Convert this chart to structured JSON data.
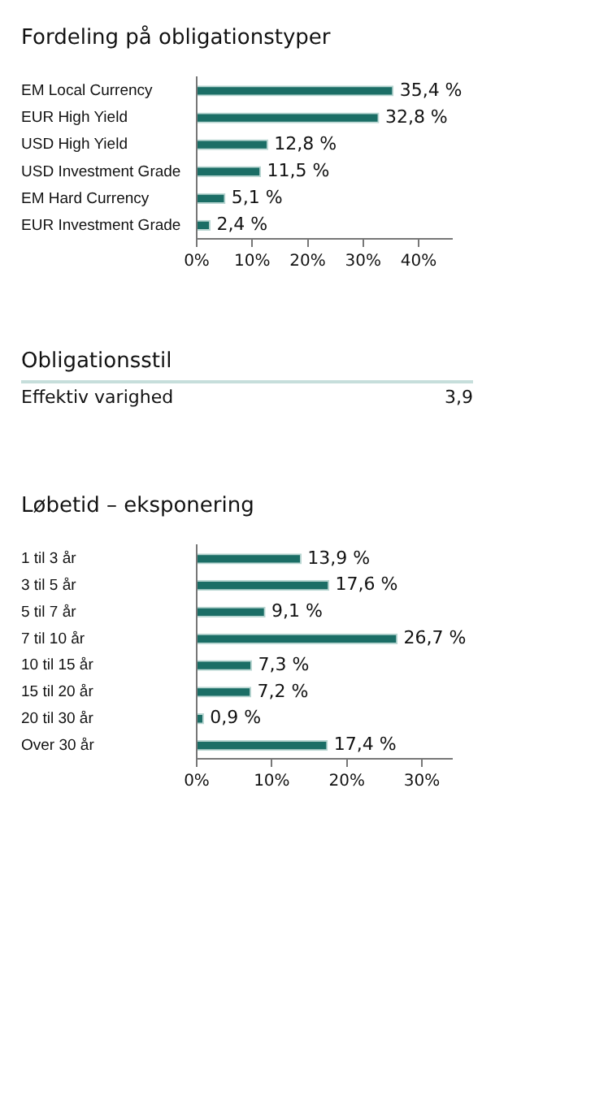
{
  "chart_data": [
    {
      "type": "bar",
      "orientation": "horizontal",
      "title": "Fordeling på obligationstyper",
      "categories": [
        "EM Local Currency",
        "EUR High Yield",
        "USD High Yield",
        "USD Investment Grade",
        "EM Hard Currency",
        "EUR Investment Grade"
      ],
      "values": [
        35.4,
        32.8,
        12.8,
        11.5,
        5.1,
        2.4
      ],
      "value_labels": [
        "35,4 %",
        "32,8 %",
        "12,8 %",
        "11,5 %",
        "5,1 %",
        "2,4 %"
      ],
      "color": "#1b6e66",
      "xlim": [
        0,
        46
      ],
      "xticks": [
        {
          "value": 0,
          "label": "0%"
        },
        {
          "value": 10,
          "label": "10%"
        },
        {
          "value": 20,
          "label": "20%"
        },
        {
          "value": 30,
          "label": "30%"
        },
        {
          "value": 40,
          "label": "40%"
        }
      ],
      "grid": false,
      "legend": false
    },
    {
      "type": "other",
      "title": "Obligationsstil",
      "annotations": [
        "Effektiv varighed",
        "3,9"
      ]
    },
    {
      "type": "bar",
      "orientation": "horizontal",
      "title": "Løbetid – eksponering",
      "categories": [
        "1 til 3 år",
        "3 til 5 år",
        "5 til 7 år",
        "7 til 10 år",
        "10 til 15 år",
        "15 til 20 år",
        "20 til 30 år",
        "Over 30 år"
      ],
      "values": [
        13.9,
        17.6,
        9.1,
        26.7,
        7.3,
        7.2,
        0.9,
        17.4
      ],
      "value_labels": [
        "13,9 %",
        "17,6 %",
        "9,1 %",
        "26,7 %",
        "7,3 %",
        "7,2 %",
        "0,9 %",
        "17,4 %"
      ],
      "color": "#1b6e66",
      "xlim": [
        0,
        34
      ],
      "xticks": [
        {
          "value": 0,
          "label": "0%"
        },
        {
          "value": 10,
          "label": "10%"
        },
        {
          "value": 20,
          "label": "20%"
        },
        {
          "value": 30,
          "label": "30%"
        }
      ],
      "grid": false,
      "legend": false
    }
  ]
}
